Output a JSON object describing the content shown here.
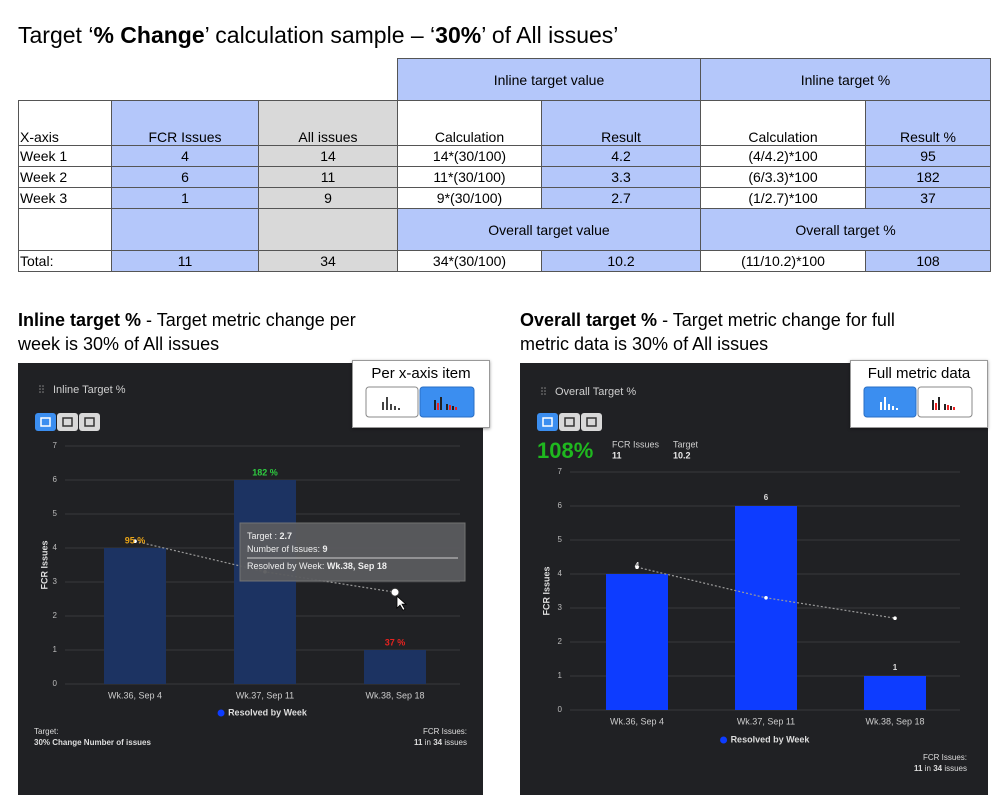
{
  "title": [
    "Target ‘",
    "% Change",
    "’ calculation sample – ‘",
    "30%",
    "’ of All issues’"
  ],
  "table": {
    "groups": [
      "Inline target value",
      "Inline target %"
    ],
    "columns": [
      "X-axis",
      "FCR Issues",
      "All issues",
      "Calculation",
      "Result",
      "Calculation",
      "Result %"
    ],
    "rows": [
      [
        "Week 1",
        4,
        14,
        "14*(30/100)",
        4.2,
        "(4/4.2)*100",
        95
      ],
      [
        "Week 2",
        6,
        11,
        "11*(30/100)",
        3.3,
        "(6/3.3)*100",
        182
      ],
      [
        "Week 3",
        1,
        9,
        "9*(30/100)",
        2.7,
        "(1/2.7)*100",
        37
      ]
    ],
    "subgroups": [
      "Overall target value",
      "Overall target %"
    ],
    "total": [
      "Total:",
      11,
      34,
      "34*(30/100)",
      10.2,
      "(11/10.2)*100",
      108
    ]
  },
  "captions": [
    {
      "bold": "Inline target %",
      "text": " - Target metric change per week is 30% of All issues"
    },
    {
      "bold": "Overall target %",
      "text": " - Target metric change for full metric data is 30% of All issues"
    }
  ],
  "chart_data": [
    {
      "type": "bar",
      "title": "Inline Target %",
      "mode": "Per x-axis item",
      "y_label": "FCR Issues",
      "categories": [
        "Wk.36, Sep 4",
        "Wk.37, Sep 11",
        "Wk.38, Sep 18"
      ],
      "series": [
        {
          "name": "Resolved by Week",
          "color": "#1c3362",
          "values": [
            4,
            6,
            1
          ]
        },
        {
          "type": "line",
          "color": "#9a9a9a",
          "values": [
            4.2,
            3.3,
            2.7
          ]
        }
      ],
      "annotations": [
        "95 %",
        "182 %",
        "37 %"
      ],
      "annotation_colors": [
        "#e8a317",
        "#2ecc40",
        "#e8231f"
      ],
      "ylim": [
        0,
        7
      ],
      "yticks": [
        0,
        1,
        2,
        3,
        4,
        5,
        6,
        7
      ],
      "grid": true,
      "tooltip": [
        {
          "label": "Target : ",
          "value": "2.7"
        },
        {
          "label": "Number of Issues: ",
          "value": "9"
        },
        {
          "label": "Resolved by Week: ",
          "value": "Wk.38, Sep 18"
        }
      ],
      "footer_left": {
        "label": "Target:",
        "text": "30% Change Number of issues"
      },
      "footer_right": {
        "label": "FCR Issues:",
        "count": "11",
        "mid": " in ",
        "total": "34",
        "end": " issues"
      }
    },
    {
      "type": "bar",
      "title": "Overall Target %",
      "mode": "Full metric data",
      "y_label": "FCR Issues",
      "kpi": {
        "value": "108%",
        "items": [
          {
            "label": "FCR Issues",
            "value": "11"
          },
          {
            "label": "Target",
            "value": "10.2"
          }
        ]
      },
      "categories": [
        "Wk.36, Sep 4",
        "Wk.37, Sep 11",
        "Wk.38, Sep 18"
      ],
      "series": [
        {
          "name": "Resolved by Week",
          "color": "#0d3cff",
          "values": [
            4,
            6,
            1
          ]
        },
        {
          "type": "line",
          "color": "#9a9a9a",
          "values": [
            4.2,
            3.3,
            2.7
          ]
        }
      ],
      "show_values": true,
      "ylim": [
        0,
        7
      ],
      "yticks": [
        0,
        1,
        2,
        3,
        4,
        5,
        6,
        7
      ],
      "grid": true,
      "footer_right": {
        "label": "FCR Issues:",
        "count": "11",
        "mid": " in ",
        "total": "34",
        "end": " issues"
      }
    }
  ]
}
